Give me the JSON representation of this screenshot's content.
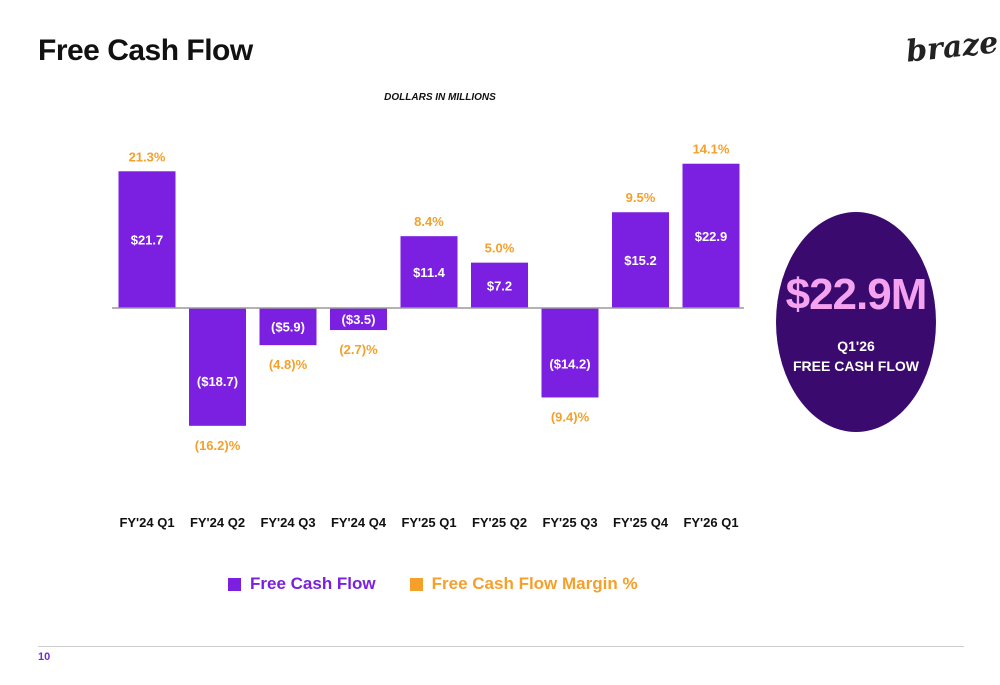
{
  "page": {
    "title": "Free Cash Flow",
    "logo": "braze",
    "page_number": "10"
  },
  "colors": {
    "bar": "#7b1fe0",
    "margin": "#f5a02a",
    "circle_bg": "#3a0a6e",
    "circle_value": "#f5a3ee"
  },
  "highlight": {
    "value": "$22.9M",
    "line1": "Q1'26",
    "line2": "FREE CASH FLOW"
  },
  "chart_data": {
    "type": "bar",
    "subtitle": "DOLLARS IN MILLIONS",
    "categories": [
      "FY'24 Q1",
      "FY'24 Q2",
      "FY'24 Q3",
      "FY'24 Q4",
      "FY'25 Q1",
      "FY'25 Q2",
      "FY'25 Q3",
      "FY'25 Q4",
      "FY'26 Q1"
    ],
    "series": [
      {
        "name": "Free Cash Flow",
        "values": [
          21.7,
          -18.7,
          -5.9,
          -3.5,
          11.4,
          7.2,
          -14.2,
          15.2,
          22.9
        ],
        "labels": [
          "$21.7",
          "($18.7)",
          "($5.9)",
          "($3.5)",
          "$11.4",
          "$7.2",
          "($14.2)",
          "$15.2",
          "$22.9"
        ]
      },
      {
        "name": "Free Cash Flow Margin %",
        "values": [
          21.3,
          -16.2,
          -4.8,
          -2.7,
          8.4,
          5.0,
          -9.4,
          9.5,
          14.1
        ],
        "labels": [
          "21.3%",
          "(16.2)%",
          "(4.8)%",
          "(2.7)%",
          "8.4%",
          "5.0%",
          "(9.4)%",
          "9.5%",
          "14.1%"
        ]
      }
    ],
    "legend": [
      "Free Cash Flow",
      "Free Cash Flow Margin %"
    ],
    "legend_position": "bottom",
    "grid": false
  }
}
